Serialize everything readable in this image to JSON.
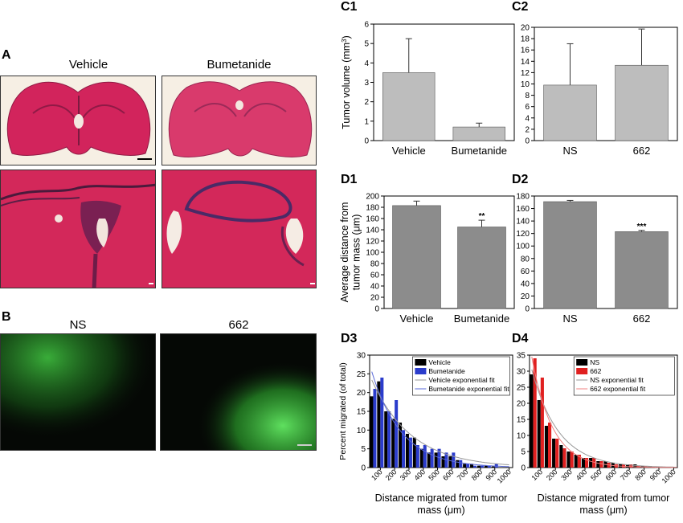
{
  "panels": {
    "A": {
      "label": "A",
      "titles": [
        "Vehicle",
        "Bumetanide"
      ]
    },
    "B": {
      "label": "B",
      "titles": [
        "NS",
        "662"
      ]
    },
    "C1": {
      "label": "C1"
    },
    "C2": {
      "label": "C2"
    },
    "D1": {
      "label": "D1"
    },
    "D2": {
      "label": "D2"
    },
    "D3": {
      "label": "D3"
    },
    "D4": {
      "label": "D4"
    }
  },
  "chart_data": [
    {
      "id": "C1",
      "type": "bar",
      "categories": [
        "Vehicle",
        "Bumetanide"
      ],
      "values": [
        3.5,
        0.7
      ],
      "errors": [
        1.75,
        0.2
      ],
      "ylabel": "Tumor volume (mm3)",
      "ylim": [
        0,
        6
      ],
      "yticks": [
        "0",
        "1",
        "2",
        "3",
        "4",
        "5",
        "6"
      ],
      "colors": {
        "bar": "#bdbdbd"
      }
    },
    {
      "id": "C2",
      "type": "bar",
      "categories": [
        "NS",
        "662"
      ],
      "values": [
        9.8,
        13.3
      ],
      "errors": [
        7.3,
        6.4
      ],
      "ylim": [
        0,
        20
      ],
      "yticks": [
        "0",
        "2",
        "4",
        "6",
        "8",
        "10",
        "12",
        "14",
        "16",
        "18",
        "20"
      ],
      "colors": {
        "bar": "#bdbdbd"
      }
    },
    {
      "id": "D1",
      "type": "bar",
      "categories": [
        "Vehicle",
        "Bumetanide"
      ],
      "values": [
        183,
        145
      ],
      "errors": [
        8,
        12
      ],
      "annotations": [
        "",
        "**"
      ],
      "ylabel": "Average distance from tumor mass (μm)",
      "ylim": [
        0,
        200
      ],
      "yticks": [
        "0",
        "20",
        "40",
        "60",
        "80",
        "100",
        "120",
        "140",
        "160",
        "180",
        "200"
      ],
      "colors": {
        "bar": "#8c8c8c"
      }
    },
    {
      "id": "D2",
      "type": "bar",
      "categories": [
        "NS",
        "662"
      ],
      "values": [
        171,
        123
      ],
      "errors": [
        2,
        2
      ],
      "annotations": [
        "",
        "***"
      ],
      "ylim": [
        0,
        180
      ],
      "yticks": [
        "0",
        "20",
        "40",
        "60",
        "80",
        "100",
        "120",
        "140",
        "160",
        "180"
      ],
      "colors": {
        "bar": "#8c8c8c"
      }
    },
    {
      "id": "D3",
      "type": "bar",
      "x": [
        50,
        100,
        150,
        200,
        250,
        300,
        350,
        400,
        450,
        500,
        550,
        600,
        650,
        700,
        750,
        800,
        850,
        900,
        950,
        1000
      ],
      "series": [
        {
          "name": "Vehicle",
          "values": [
            19,
            23,
            15,
            13,
            12,
            9,
            8,
            5,
            4,
            4,
            3,
            3,
            2,
            1,
            1,
            0.5,
            0.5,
            0.3,
            0,
            0
          ]
        },
        {
          "name": "Bumetanide",
          "values": [
            21,
            24,
            15,
            18,
            10,
            8,
            6,
            6,
            5,
            5,
            4,
            4,
            2,
            1,
            0.5,
            0.5,
            0.5,
            1,
            0,
            0
          ]
        }
      ],
      "fits": [
        {
          "name": "Vehicle exponential fit",
          "a": 27,
          "k": 0.0036
        },
        {
          "name": "Bumetanide exponential fit",
          "a": 31,
          "k": 0.0048
        }
      ],
      "xlabel": "Distance migrated from tumor mass (μm)",
      "ylabel": "Percent migrated (of total)",
      "ylim": [
        0,
        30
      ],
      "xlim": [
        25,
        1025
      ],
      "yticks": [
        "0",
        "5",
        "10",
        "15",
        "20",
        "25",
        "30"
      ],
      "xticks": [
        "100",
        "200",
        "300",
        "400",
        "500",
        "600",
        "700",
        "800",
        "900",
        "1000"
      ],
      "legend": "top-right",
      "colors": {
        "a": "#000000",
        "b": "#2b3ccc",
        "fit_a": "#999999",
        "fit_b": "#5a6ad8"
      }
    },
    {
      "id": "D4",
      "type": "bar",
      "x": [
        50,
        100,
        150,
        200,
        250,
        300,
        350,
        400,
        450,
        500,
        550,
        600,
        650,
        700,
        750,
        800,
        850,
        900,
        950,
        1000
      ],
      "series": [
        {
          "name": "NS",
          "values": [
            29,
            21,
            13,
            9,
            7,
            5,
            4,
            3,
            3,
            2,
            2,
            1.5,
            1,
            1,
            1,
            0.5,
            0.5,
            0.3,
            0.2,
            0.1
          ]
        },
        {
          "name": "662",
          "values": [
            34,
            28,
            14,
            9,
            6,
            5,
            4,
            3,
            3,
            2,
            1.5,
            1,
            1,
            1,
            0.5,
            0.5,
            0.3,
            0.2,
            0.1,
            0.1
          ]
        }
      ],
      "fits": [
        {
          "name": "NS exponential fit",
          "a": 38,
          "k": 0.0055
        },
        {
          "name": "662 exponential fit",
          "a": 46,
          "k": 0.0072
        }
      ],
      "xlabel": "Distance migrated from tumor mass (μm)",
      "ylim": [
        0,
        35
      ],
      "xlim": [
        25,
        1025
      ],
      "yticks": [
        "0",
        "5",
        "10",
        "15",
        "20",
        "25",
        "30",
        "35"
      ],
      "xticks": [
        "100",
        "200",
        "300",
        "400",
        "500",
        "600",
        "700",
        "800",
        "900",
        "1000"
      ],
      "legend": "top-right",
      "colors": {
        "a": "#000000",
        "b": "#e02020",
        "fit_a": "#999999",
        "fit_b": "#f08080"
      }
    }
  ]
}
